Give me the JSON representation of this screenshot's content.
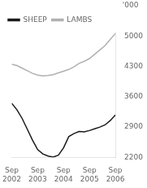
{
  "chart_data": {
    "type": "line",
    "ylabel": "'000",
    "x": [
      0,
      0.8,
      1.6,
      2.4,
      3.2,
      4.0,
      4.8,
      5.6,
      6.4,
      7.2,
      8.0,
      8.8,
      9.6,
      10.4,
      11.2,
      12.0,
      12.8,
      13.6,
      14.4,
      15.2,
      16.0
    ],
    "series": [
      {
        "name": "SHEEP",
        "color": "#1a1a1a",
        "values": [
          3450,
          3300,
          3100,
          2850,
          2600,
          2380,
          2280,
          2230,
          2210,
          2250,
          2420,
          2680,
          2750,
          2800,
          2790,
          2820,
          2860,
          2900,
          2950,
          3050,
          3180
        ]
      },
      {
        "name": "LAMBS",
        "color": "#b0b0b0",
        "values": [
          4350,
          4320,
          4260,
          4200,
          4140,
          4100,
          4080,
          4090,
          4110,
          4150,
          4190,
          4230,
          4290,
          4370,
          4420,
          4480,
          4580,
          4680,
          4780,
          4920,
          5060
        ]
      }
    ],
    "xlim": [
      0,
      16
    ],
    "xticks": [
      {
        "value": 0,
        "label": "Sep\n2002"
      },
      {
        "value": 4,
        "label": "Sep\n2003"
      },
      {
        "value": 8,
        "label": "Sep\n2004"
      },
      {
        "value": 12,
        "label": "Sep\n2005"
      },
      {
        "value": 16,
        "label": "Sep\n2006"
      }
    ],
    "ylim": [
      2200,
      5100
    ],
    "yticks": [
      2200,
      2900,
      3600,
      4300,
      5000
    ],
    "grid": false,
    "legend": "upper left"
  }
}
